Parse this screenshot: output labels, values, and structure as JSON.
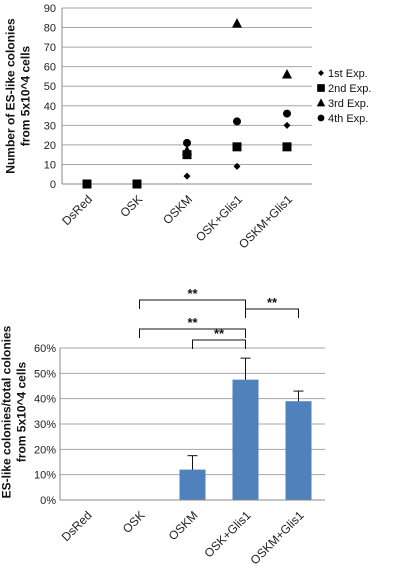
{
  "chart_data": [
    {
      "type": "scatter",
      "title": "",
      "ylabel": "Number of ES-like colonies\nfrom 5x10^4 cells",
      "xlabel": "",
      "ylim": [
        0,
        90
      ],
      "yticks": [
        0,
        10,
        20,
        30,
        40,
        50,
        60,
        70,
        80,
        90
      ],
      "categories": [
        "DsRed",
        "OSK",
        "OSKM",
        "OSK+Glis1",
        "OSKM+Glis1"
      ],
      "legend_position": "right",
      "grid": true,
      "series": [
        {
          "name": "1st Exp.",
          "marker": "diamond",
          "values": [
            0,
            0,
            4,
            9,
            30
          ]
        },
        {
          "name": "2nd Exp.",
          "marker": "square",
          "values": [
            0,
            0,
            15,
            19,
            19
          ]
        },
        {
          "name": "3rd Exp.",
          "marker": "triangle",
          "values": [
            0,
            0,
            17,
            82,
            56
          ]
        },
        {
          "name": "4th Exp.",
          "marker": "circle",
          "values": [
            0,
            0,
            21,
            32,
            36
          ]
        }
      ]
    },
    {
      "type": "bar",
      "title": "",
      "ylabel": "ES-like colonies/total colonies\nfrom 5x10^4 cells",
      "xlabel": "",
      "ylim": [
        0,
        60
      ],
      "yticks": [
        "0%",
        "10%",
        "20%",
        "30%",
        "40%",
        "50%",
        "60%"
      ],
      "categories": [
        "DsRed",
        "OSK",
        "OSKM",
        "OSK+Glis1",
        "OSKM+Glis1"
      ],
      "values": [
        0,
        0,
        12,
        47.5,
        39
      ],
      "errors": [
        0,
        0,
        5.5,
        8.5,
        4
      ],
      "bar_color": "#4f81bd",
      "grid": true,
      "significance": [
        {
          "from": "OSK",
          "to": "OSK+Glis1",
          "label": "**"
        },
        {
          "from": "OSK+Glis1",
          "to": "OSKM+Glis1",
          "label": "**"
        },
        {
          "from": "OSK",
          "to": "OSK+Glis1",
          "label": "**"
        },
        {
          "from": "OSKM",
          "to": "OSK+Glis1",
          "label": "**"
        }
      ]
    }
  ]
}
